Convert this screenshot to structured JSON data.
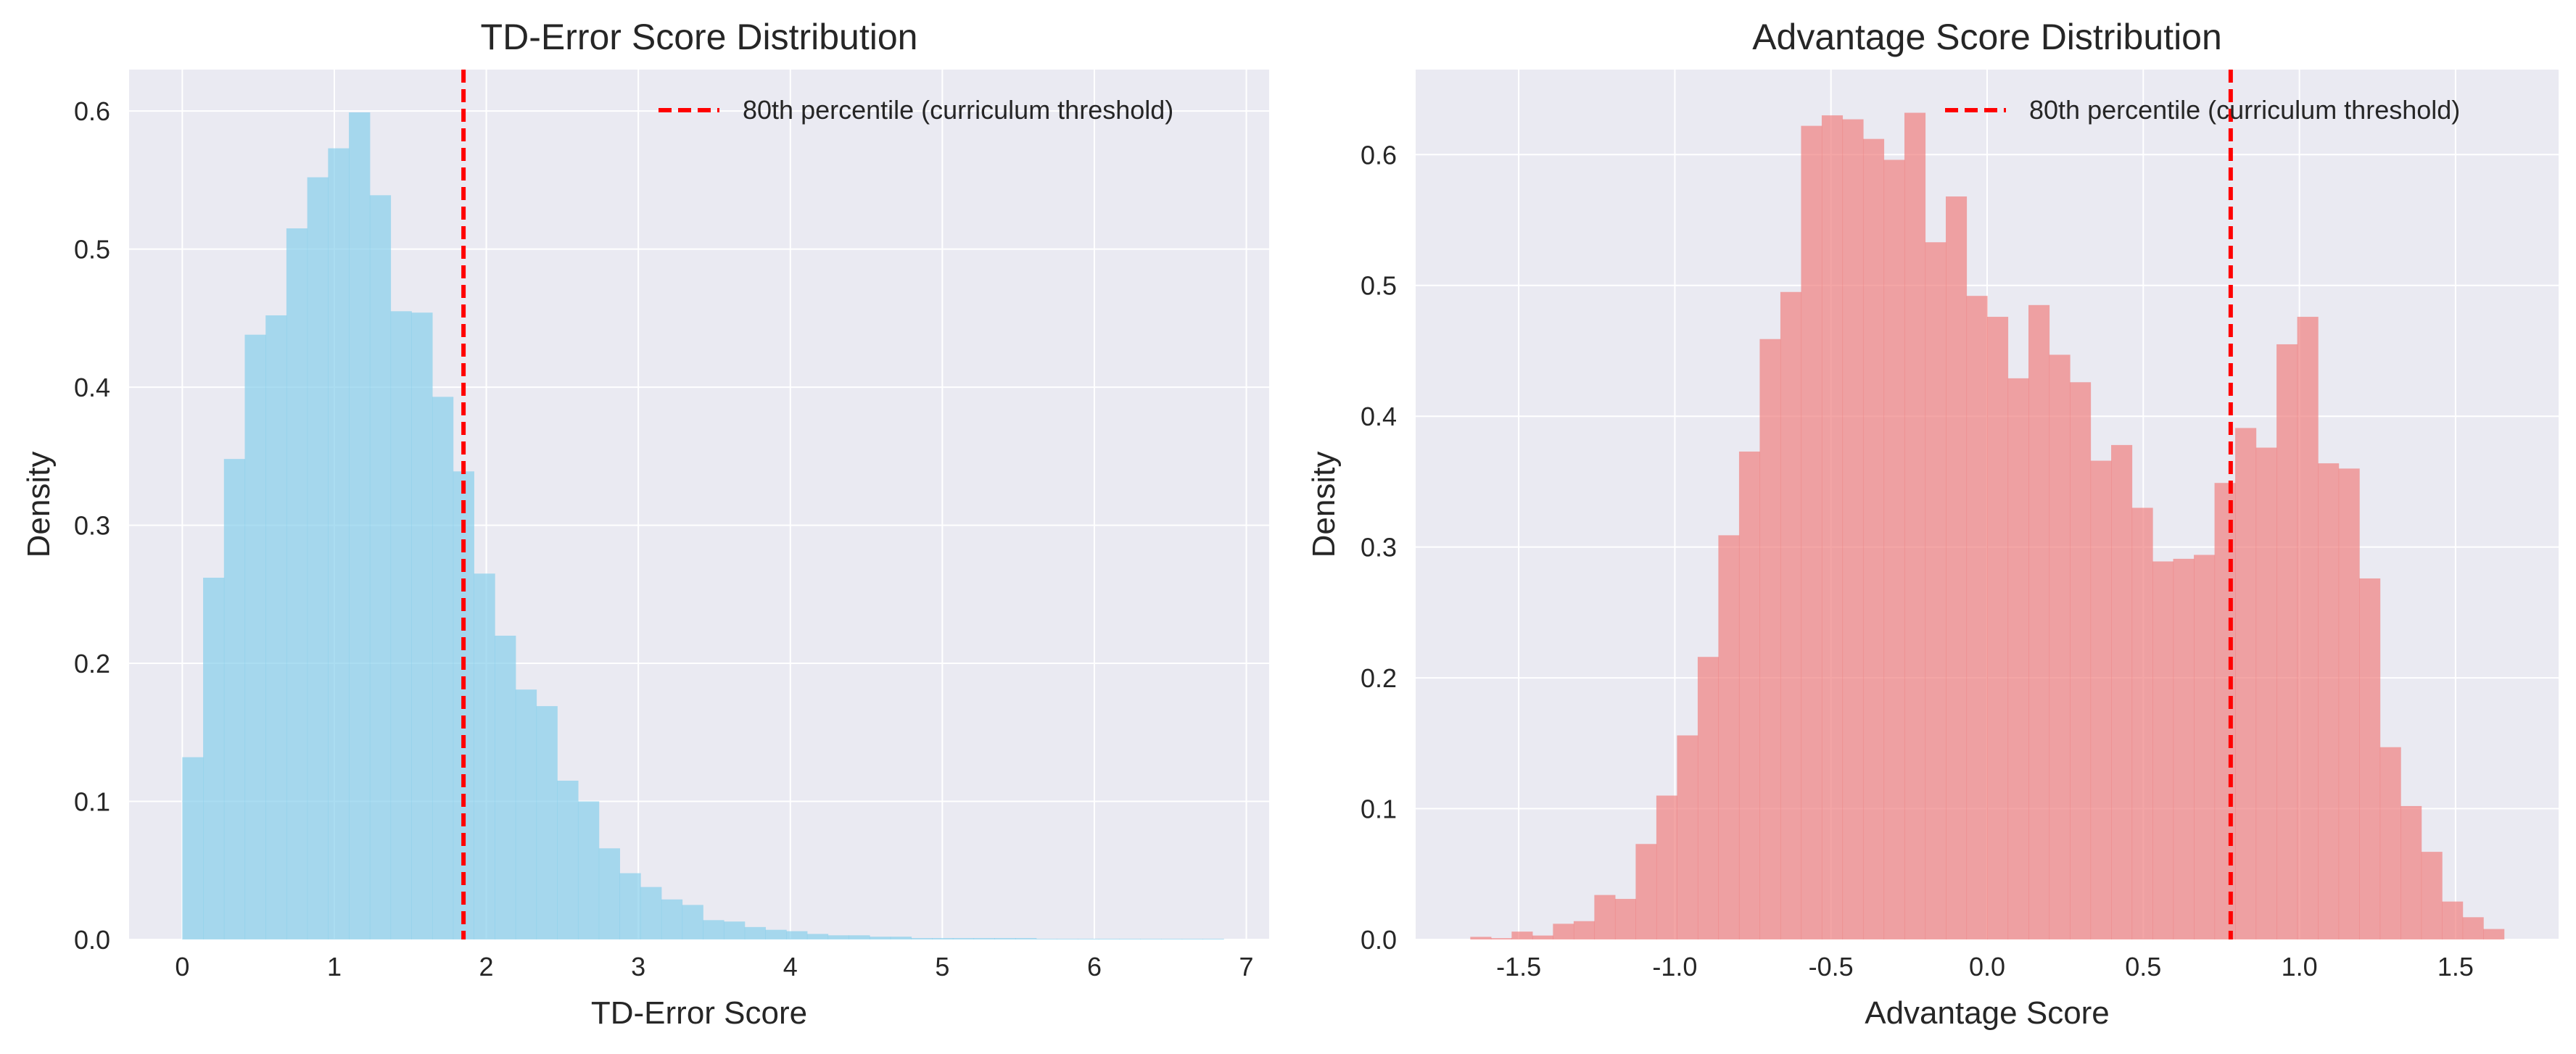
{
  "chart_data": [
    {
      "type": "histogram",
      "title": "TD-Error Score Distribution",
      "xlabel": "TD-Error Score",
      "ylabel": "Density",
      "xlim": [
        -0.35,
        7.15
      ],
      "ylim": [
        0,
        0.63
      ],
      "xticks": [
        0,
        1,
        2,
        3,
        4,
        5,
        6,
        7
      ],
      "xtick_labels": [
        "0",
        "1",
        "2",
        "3",
        "4",
        "5",
        "6",
        "7"
      ],
      "yticks": [
        0.0,
        0.1,
        0.2,
        0.3,
        0.4,
        0.5,
        0.6
      ],
      "ytick_labels": [
        "0.0",
        "0.1",
        "0.2",
        "0.3",
        "0.4",
        "0.5",
        "0.6"
      ],
      "grid": true,
      "bar_color": "#87ceeb",
      "bin_start": 0.0,
      "bin_width": 0.137,
      "values": [
        0.132,
        0.262,
        0.348,
        0.438,
        0.452,
        0.515,
        0.552,
        0.573,
        0.599,
        0.539,
        0.455,
        0.454,
        0.393,
        0.339,
        0.265,
        0.22,
        0.181,
        0.169,
        0.115,
        0.1,
        0.066,
        0.048,
        0.038,
        0.029,
        0.025,
        0.014,
        0.013,
        0.009,
        0.007,
        0.006,
        0.004,
        0.003,
        0.003,
        0.002,
        0.002,
        0.001,
        0.001,
        0.001,
        0.001,
        0.001,
        0.001,
        0.0005,
        0.0005,
        0.0005,
        0.0005,
        0.0005,
        0.0005,
        0.0005,
        0.0005,
        0.0005
      ],
      "threshold": {
        "x": 1.85,
        "color": "#ff0000",
        "label": "80th percentile (curriculum threshold)"
      },
      "legend_position": "top-right"
    },
    {
      "type": "histogram",
      "title": "Advantage Score Distribution",
      "xlabel": "Advantage Score",
      "ylabel": "Density",
      "xlim": [
        -1.83,
        1.83
      ],
      "ylim": [
        0,
        0.665
      ],
      "xticks": [
        -1.5,
        -1.0,
        -0.5,
        0.0,
        0.5,
        1.0,
        1.5
      ],
      "xtick_labels": [
        "-1.5",
        "-1.0",
        "-0.5",
        "0.0",
        "0.5",
        "1.0",
        "1.5"
      ],
      "yticks": [
        0.0,
        0.1,
        0.2,
        0.3,
        0.4,
        0.5,
        0.6
      ],
      "ytick_labels": [
        "0.0",
        "0.1",
        "0.2",
        "0.3",
        "0.4",
        "0.5",
        "0.6"
      ],
      "grid": true,
      "bar_color": "#f08080",
      "bin_start": -1.655,
      "bin_width": 0.0662,
      "values": [
        0.002,
        0.001,
        0.006,
        0.003,
        0.012,
        0.014,
        0.034,
        0.031,
        0.073,
        0.11,
        0.156,
        0.216,
        0.309,
        0.373,
        0.459,
        0.495,
        0.622,
        0.63,
        0.627,
        0.612,
        0.596,
        0.632,
        0.533,
        0.568,
        0.492,
        0.476,
        0.429,
        0.485,
        0.447,
        0.426,
        0.366,
        0.378,
        0.33,
        0.289,
        0.291,
        0.294,
        0.349,
        0.391,
        0.376,
        0.455,
        0.476,
        0.364,
        0.36,
        0.276,
        0.147,
        0.102,
        0.067,
        0.029,
        0.017,
        0.008
      ],
      "threshold": {
        "x": 0.78,
        "color": "#ff0000",
        "label": "80th percentile (curriculum threshold)"
      },
      "legend_position": "top-right"
    }
  ]
}
